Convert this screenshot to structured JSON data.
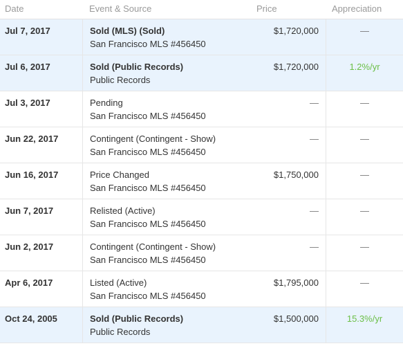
{
  "header": {
    "date": "Date",
    "event": "Event & Source",
    "price": "Price",
    "appreciation": "Appreciation"
  },
  "rows": [
    {
      "date": "Jul 7, 2017",
      "event": "Sold (MLS) (Sold)",
      "source": "San Francisco MLS #456450",
      "price": "$1,720,000",
      "appreciation": "—"
    },
    {
      "date": "Jul 6, 2017",
      "event": "Sold (Public Records)",
      "source": "Public Records",
      "price": "$1,720,000",
      "appreciation": "1.2%/yr"
    },
    {
      "date": "Jul 3, 2017",
      "event": "Pending",
      "source": "San Francisco MLS #456450",
      "price": "—",
      "appreciation": "—"
    },
    {
      "date": "Jun 22, 2017",
      "event": "Contingent (Contingent - Show)",
      "source": "San Francisco MLS #456450",
      "price": "—",
      "appreciation": "—"
    },
    {
      "date": "Jun 16, 2017",
      "event": "Price Changed",
      "source": "San Francisco MLS #456450",
      "price": "$1,750,000",
      "appreciation": "—"
    },
    {
      "date": "Jun 7, 2017",
      "event": "Relisted (Active)",
      "source": "San Francisco MLS #456450",
      "price": "—",
      "appreciation": "—"
    },
    {
      "date": "Jun 2, 2017",
      "event": "Contingent (Contingent - Show)",
      "source": "San Francisco MLS #456450",
      "price": "—",
      "appreciation": "—"
    },
    {
      "date": "Apr 6, 2017",
      "event": "Listed (Active)",
      "source": "San Francisco MLS #456450",
      "price": "$1,795,000",
      "appreciation": "—"
    },
    {
      "date": "Oct 24, 2005",
      "event": "Sold (Public Records)",
      "source": "Public Records",
      "price": "$1,500,000",
      "appreciation": "15.3%/yr"
    }
  ],
  "colors": {
    "highlight_row": "#e9f3fd",
    "appreciation_positive": "#6cbf47"
  }
}
